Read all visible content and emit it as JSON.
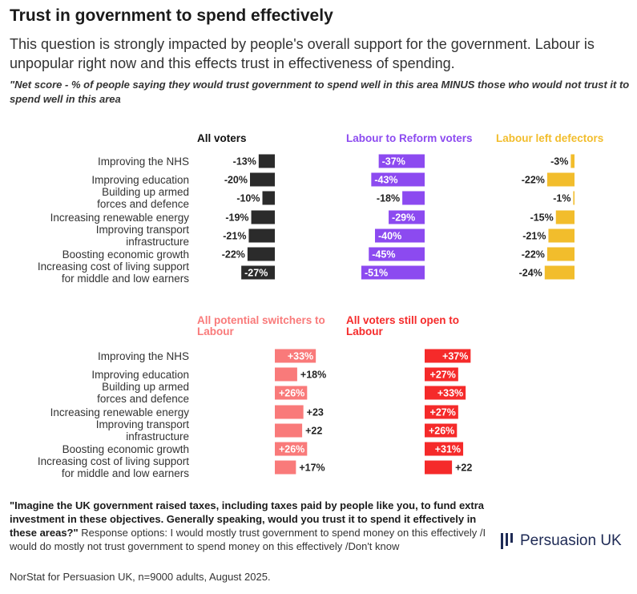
{
  "title": "Trust in government to spend effectively",
  "subtitle": "This question is strongly impacted by people's overall support for the government. Labour is unpopular right now and this effects trust in effectiveness of spending.",
  "note": "\"Net score - % of people saying they would trust government to spend well in this area MINUS those who would not trust it to spend well in this area",
  "question_bold": "\"Imagine the UK government raised taxes, including taxes paid by people like you, to fund extra investment in these objectives. Generally speaking, would you trust it to spend it effectively in these areas?\"",
  "question_rest": " Response options: I would mostly trust government to spend money on this effectively /I would do mostly not trust government to spend money on this effectively /Don't know",
  "source": "NorStat for Persuasion UK, n=9000 adults, August 2025.",
  "logo_text": "Persuasion UK",
  "chart_data": [
    {
      "type": "bar",
      "orientation": "horizontal",
      "categories": [
        "Improving the NHS",
        "Improving education",
        "Building up armed forces and defence",
        "Increasing renewable energy",
        "Improving transport infrastructure",
        "Boosting economic growth",
        "Increasing cost of living support for middle and low earners"
      ],
      "series": [
        {
          "name": "All voters",
          "color": "#2b2b2b",
          "values": [
            -13,
            -20,
            -10,
            -19,
            -21,
            -22,
            -27
          ],
          "labels": [
            "-13%",
            "-20%",
            "-10%",
            "-19%",
            "-21%",
            "-22%",
            "-27%"
          ]
        },
        {
          "name": "Labour to Reform voters",
          "color": "#8c4af0",
          "values": [
            -37,
            -43,
            -18,
            -29,
            -40,
            -45,
            -51
          ],
          "labels": [
            "-37%",
            "-43%",
            "-18%",
            "-29%",
            "-40%",
            "-45%",
            "-51%"
          ]
        },
        {
          "name": "Labour left defectors",
          "color": "#f2bd2c",
          "values": [
            -3,
            -22,
            -1,
            -15,
            -21,
            -22,
            -24
          ],
          "labels": [
            "-3%",
            "-22%",
            "-1%",
            "-15%",
            "-21%",
            "-22%",
            "-24%"
          ]
        }
      ]
    },
    {
      "type": "bar",
      "orientation": "horizontal",
      "categories": [
        "Improving the NHS",
        "Improving education",
        "Building up armed forces and defence",
        "Increasing renewable energy",
        "Improving transport infrastructure",
        "Boosting economic growth",
        "Increasing cost of living support for middle and low earners"
      ],
      "series": [
        {
          "name": "All potential switchers to Labour",
          "color": "#f97a7a",
          "values": [
            33,
            18,
            26,
            23,
            22,
            26,
            17
          ],
          "labels": [
            "+33%",
            "+18%",
            "+26%",
            "+23",
            "+22",
            "+26%",
            "+17%"
          ]
        },
        {
          "name": "All voters still open to Labour",
          "color": "#f52a2a",
          "values": [
            37,
            27,
            33,
            27,
            26,
            31,
            22
          ],
          "labels": [
            "+37%",
            "+27%",
            "+33%",
            "+27%",
            "+26%",
            "+31%",
            "+22"
          ]
        }
      ]
    }
  ],
  "colors": {
    "title": "#1a1a1a",
    "logo": "#1e2a55"
  }
}
